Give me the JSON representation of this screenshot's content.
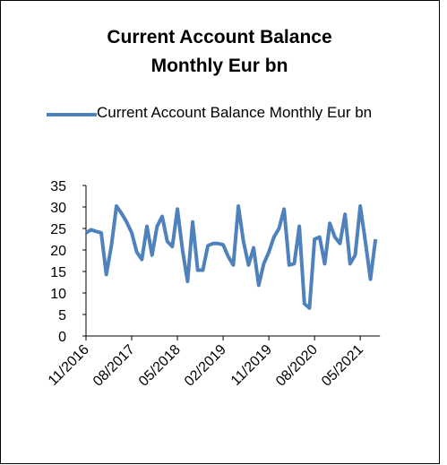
{
  "chart_data": {
    "type": "line",
    "title": "Current Account Balance\nMonthly Eur bn",
    "categories": [
      "11/2016",
      null,
      null,
      null,
      null,
      null,
      null,
      null,
      null,
      "08/2017",
      null,
      null,
      null,
      null,
      null,
      null,
      null,
      null,
      "05/2018",
      null,
      null,
      null,
      null,
      null,
      null,
      null,
      null,
      "02/2019",
      null,
      null,
      null,
      null,
      null,
      null,
      null,
      null,
      "11/2019",
      null,
      null,
      null,
      null,
      null,
      null,
      null,
      null,
      "08/2020",
      null,
      null,
      null,
      null,
      null,
      null,
      null,
      null,
      "05/2021",
      null,
      null,
      null
    ],
    "series": [
      {
        "name": "Current Account Balance Monthly Eur bn",
        "color": "#4f81bd",
        "values": [
          24,
          24.7,
          24.3,
          24,
          14.3,
          21,
          30.2,
          28.5,
          26.5,
          24,
          19.5,
          17.8,
          25.5,
          18.8,
          25.5,
          27.8,
          22,
          20.8,
          29.5,
          20,
          12.7,
          26.5,
          15.3,
          15.3,
          21,
          21.5,
          21.5,
          21.2,
          18.5,
          16.5,
          30.2,
          22,
          16.5,
          20.5,
          11.8,
          16.8,
          19.5,
          23,
          25,
          29.5,
          16.5,
          16.8,
          25.5,
          7.5,
          6.5,
          22.5,
          23,
          16.8,
          26.2,
          23,
          21.5,
          28.3,
          16.8,
          18.8,
          30.2,
          22,
          13.2,
          22.5
        ]
      }
    ],
    "ylim": [
      0,
      35
    ],
    "yticks": [
      0,
      5,
      10,
      15,
      20,
      25,
      30,
      35
    ],
    "legend": "top"
  }
}
